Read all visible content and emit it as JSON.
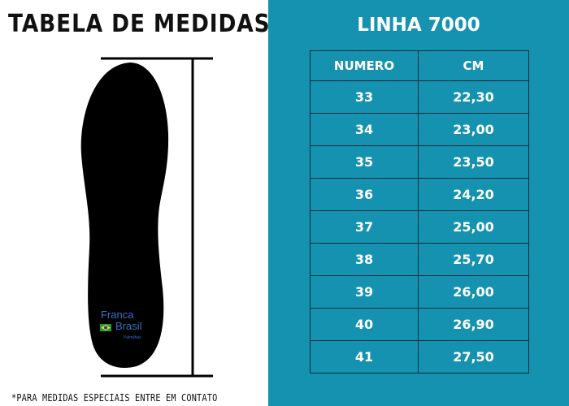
{
  "left": {
    "title": "TABELA DE MEDIDAS",
    "footnote": "*PARA MEDIDAS ESPECIAIS ENTRE EM CONTATO",
    "brand": {
      "line1": "Franca",
      "line2": "Brasil",
      "line3": "Palmilhas"
    }
  },
  "right": {
    "title": "LINHA 7000",
    "headers": {
      "numero": "NUMERO",
      "cm": "CM"
    },
    "rows": [
      {
        "numero": "33",
        "cm": "22,30"
      },
      {
        "numero": "34",
        "cm": "23,00"
      },
      {
        "numero": "35",
        "cm": "23,50"
      },
      {
        "numero": "36",
        "cm": "24,20"
      },
      {
        "numero": "37",
        "cm": "25,00"
      },
      {
        "numero": "38",
        "cm": "25,70"
      },
      {
        "numero": "39",
        "cm": "26,00"
      },
      {
        "numero": "40",
        "cm": "26,90"
      },
      {
        "numero": "41",
        "cm": "27,50"
      }
    ]
  },
  "colors": {
    "panel_background": "#1592b0",
    "table_border": "#0d2a3a",
    "insole": "#000000",
    "brand_text": "#3a6fc4"
  }
}
